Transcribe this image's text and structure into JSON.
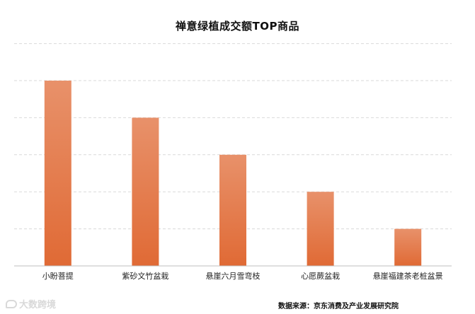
{
  "chart_data": {
    "type": "bar",
    "title": "禅意绿植成交额TOP商品",
    "categories": [
      "小盼菩提",
      "紫砂文竹盆栽",
      "悬崖六月雪弯枝",
      "心愿蕨盆栽",
      "悬崖福建茶老桩盆景"
    ],
    "values": [
      5,
      4,
      3,
      2,
      1
    ],
    "ylim": [
      0,
      6
    ],
    "grid": true,
    "xlabel": "",
    "ylabel": "",
    "colors": {
      "bar_top": "#E8916A",
      "bar_bottom": "#E06A35",
      "grid": "#d9d9d9",
      "axis": "#bfbfbf"
    }
  },
  "source": "数据来源：京东消费及产业发展研究院",
  "watermark": "大数跨境"
}
